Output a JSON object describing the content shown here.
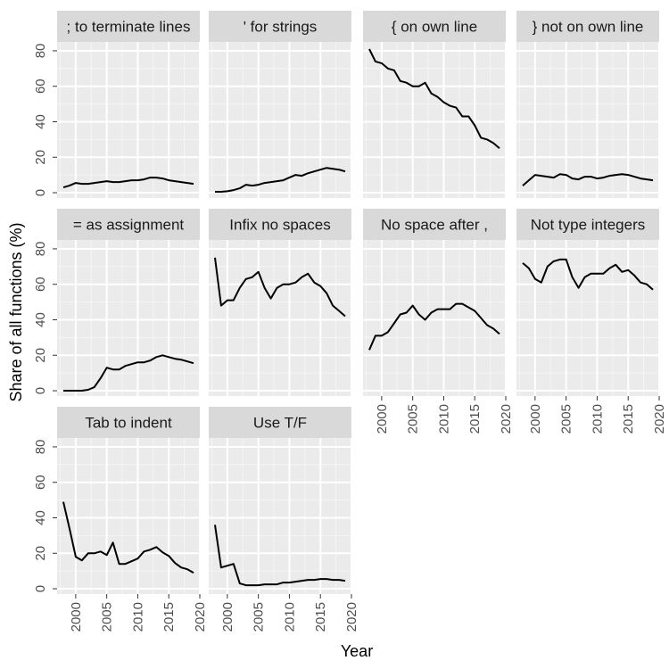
{
  "chart_data": {
    "type": "line",
    "facet_layout": "4 columns, 3 rows (small multiples)",
    "xlabel": "Year",
    "ylabel": "Share of all functions (%)",
    "xlim": [
      1997,
      2020
    ],
    "ylim": [
      -3,
      85
    ],
    "x_ticks": [
      2000,
      2005,
      2010,
      2015,
      2020
    ],
    "y_ticks": [
      0,
      20,
      40,
      60,
      80
    ],
    "grid": true,
    "panel_background": "#ebebeb",
    "strip_background": "#d9d9d9",
    "line_color": "#000000",
    "x": [
      1998,
      1999,
      2000,
      2001,
      2002,
      2003,
      2004,
      2005,
      2006,
      2007,
      2008,
      2009,
      2010,
      2011,
      2012,
      2013,
      2014,
      2015,
      2016,
      2017,
      2018,
      2019
    ],
    "series": [
      {
        "name": "; to terminate lines",
        "values": [
          3,
          4,
          5.5,
          5,
          5,
          5.5,
          6,
          6.5,
          6,
          6,
          6.5,
          7,
          7,
          7.5,
          8.5,
          8.5,
          8,
          7,
          6.5,
          6,
          5.5,
          5
        ]
      },
      {
        "name": "' for strings",
        "values": [
          0.5,
          0.5,
          0.8,
          1.5,
          2.5,
          4.5,
          4,
          4.5,
          5.5,
          6,
          6.5,
          7,
          8.5,
          10,
          9.5,
          11,
          12,
          13,
          14,
          13.5,
          13,
          12
        ]
      },
      {
        "name": "{ on own line",
        "values": [
          81,
          74,
          73,
          70,
          69,
          63,
          62,
          60,
          60,
          62,
          56,
          54,
          51,
          49,
          48,
          43,
          43,
          38,
          31,
          30,
          28,
          25
        ]
      },
      {
        "name": "} not on own line",
        "values": [
          4,
          7,
          10,
          9.5,
          9,
          8.5,
          10.5,
          10,
          8,
          7.5,
          9,
          9,
          8,
          8.5,
          9.5,
          10,
          10.5,
          10,
          9,
          8,
          7.5,
          7
        ]
      },
      {
        "name": "= as assignment",
        "values": [
          0,
          0,
          0,
          0,
          0.5,
          2,
          7,
          13,
          12,
          12,
          14,
          15,
          16,
          16,
          17,
          19,
          20,
          19,
          18,
          17.5,
          16.5,
          15.5
        ]
      },
      {
        "name": "Infix no spaces",
        "values": [
          75,
          48,
          51,
          51,
          58,
          63,
          64,
          67,
          58,
          52,
          58,
          60,
          60,
          61,
          64,
          66,
          61,
          59,
          55,
          48,
          45,
          42
        ]
      },
      {
        "name": "No space after ,",
        "values": [
          23,
          31,
          31,
          33,
          38,
          43,
          44,
          48,
          43,
          40,
          44,
          46,
          46,
          46,
          49,
          49,
          47,
          45,
          41,
          37,
          35,
          32
        ]
      },
      {
        "name": "Not type integers",
        "values": [
          72,
          69,
          63,
          61,
          70,
          73,
          74,
          74,
          64,
          58,
          64,
          66,
          66,
          66,
          69,
          71,
          67,
          68,
          65,
          61,
          60,
          57
        ]
      },
      {
        "name": "Tab to indent",
        "values": [
          49,
          34,
          18,
          16,
          20,
          20,
          21,
          19,
          26,
          14,
          14,
          15.5,
          17,
          21,
          22,
          23.5,
          20.5,
          18.5,
          14.5,
          12,
          11,
          9
        ]
      },
      {
        "name": "Use T/F",
        "values": [
          36,
          12,
          13,
          14,
          3,
          2,
          2,
          2,
          2.5,
          2.5,
          2.5,
          3.5,
          3.5,
          4,
          4.5,
          5,
          5,
          5.5,
          5.5,
          5,
          5,
          4.5
        ]
      }
    ]
  }
}
